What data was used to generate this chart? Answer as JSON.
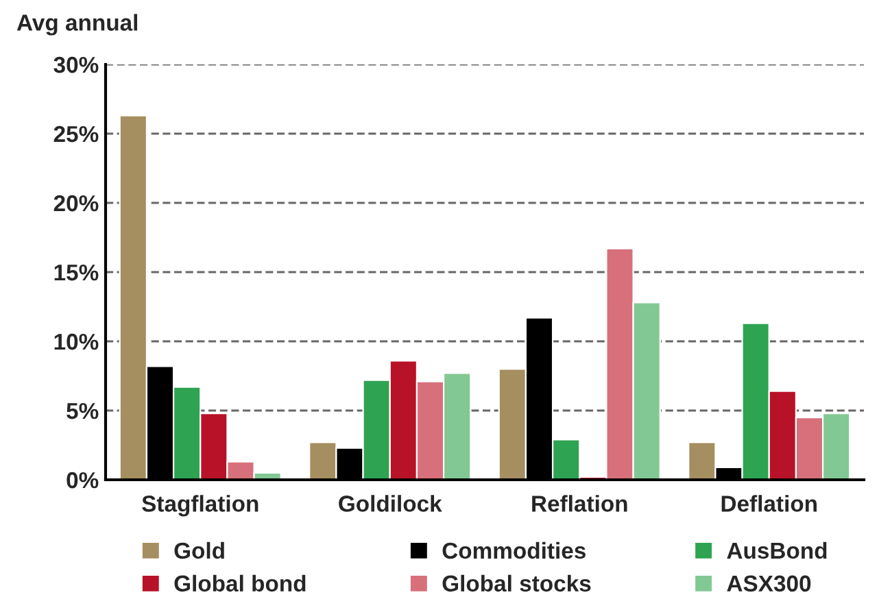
{
  "chart_data": {
    "type": "bar",
    "title": "Avg annual",
    "categories": [
      "Stagflation",
      "Goldilock",
      "Reflation",
      "Deflation"
    ],
    "series": [
      {
        "name": "Gold",
        "color": "#a58e5f",
        "values": [
          26.3,
          2.7,
          8.0,
          2.7
        ]
      },
      {
        "name": "Commodities",
        "color": "#000000",
        "values": [
          8.2,
          2.3,
          11.7,
          0.9
        ]
      },
      {
        "name": "AusBond",
        "color": "#2ea351",
        "values": [
          6.7,
          7.2,
          2.9,
          11.3
        ]
      },
      {
        "name": "Global bond",
        "color": "#b81228",
        "values": [
          4.8,
          8.6,
          0.2,
          6.4
        ]
      },
      {
        "name": "Global stocks",
        "color": "#d7707b",
        "values": [
          1.3,
          7.1,
          16.7,
          4.5
        ]
      },
      {
        "name": "ASX300",
        "color": "#82c894",
        "values": [
          0.5,
          7.7,
          12.8,
          4.8
        ]
      }
    ],
    "ylim": [
      0,
      30
    ],
    "yticks": [
      {
        "value": 0,
        "label": "0%"
      },
      {
        "value": 5,
        "label": "5%"
      },
      {
        "value": 10,
        "label": "10%"
      },
      {
        "value": 15,
        "label": "15%"
      },
      {
        "value": 20,
        "label": "20%"
      },
      {
        "value": 25,
        "label": "25%"
      },
      {
        "value": 30,
        "label": "30%"
      }
    ],
    "grid": "y",
    "legend": "bottom"
  }
}
